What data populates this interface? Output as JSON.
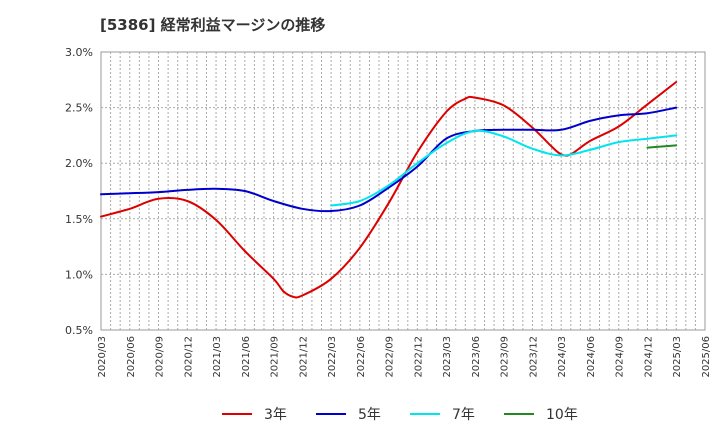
{
  "chart_data": {
    "type": "line",
    "title": "[5386]  経常利益マージンの推移",
    "xlabel": "",
    "ylabel": "",
    "ylim": [
      0.005,
      0.03
    ],
    "y_ticks": [
      "0.5%",
      "1.0%",
      "1.5%",
      "2.0%",
      "2.5%",
      "3.0%"
    ],
    "y_tick_values": [
      0.005,
      0.01,
      0.015,
      0.02,
      0.025,
      0.03
    ],
    "x_ticks": [
      "2020/03",
      "2020/06",
      "2020/09",
      "2020/12",
      "2021/03",
      "2021/06",
      "2021/09",
      "2021/12",
      "2022/03",
      "2022/06",
      "2022/09",
      "2022/12",
      "2023/03",
      "2023/06",
      "2023/09",
      "2023/12",
      "2024/03",
      "2024/06",
      "2024/09",
      "2024/12",
      "2025/03",
      "2025/06"
    ],
    "grid": true,
    "legend_position": "bottom",
    "series": [
      {
        "name": "3年",
        "color": "#dd0000",
        "x": [
          "2020/03",
          "2020/06",
          "2020/09",
          "2020/12",
          "2021/03",
          "2021/06",
          "2021/09",
          "2021/10",
          "2021/11",
          "2021/12",
          "2022/03",
          "2022/06",
          "2022/09",
          "2022/12",
          "2023/03",
          "2023/05",
          "2023/06",
          "2023/09",
          "2023/12",
          "2024/02",
          "2024/03",
          "2024/04",
          "2024/06",
          "2024/09",
          "2024/12",
          "2025/03"
        ],
        "values": [
          0.0152,
          0.0159,
          0.0168,
          0.0166,
          0.0149,
          0.0121,
          0.0096,
          0.0085,
          0.008,
          0.0081,
          0.0096,
          0.0124,
          0.0164,
          0.021,
          0.0246,
          0.0258,
          0.0259,
          0.0252,
          0.0232,
          0.0215,
          0.0208,
          0.0208,
          0.022,
          0.0233,
          0.0253,
          0.0273
        ]
      },
      {
        "name": "5年",
        "color": "#0000cc",
        "x": [
          "2020/03",
          "2020/06",
          "2020/09",
          "2020/12",
          "2021/03",
          "2021/06",
          "2021/09",
          "2021/12",
          "2022/03",
          "2022/06",
          "2022/09",
          "2022/12",
          "2023/03",
          "2023/06",
          "2023/09",
          "2023/12",
          "2024/03",
          "2024/06",
          "2024/09",
          "2024/12",
          "2025/03"
        ],
        "values": [
          0.0172,
          0.0173,
          0.0174,
          0.0176,
          0.0177,
          0.0175,
          0.0166,
          0.0159,
          0.0157,
          0.0162,
          0.0178,
          0.0197,
          0.0222,
          0.0229,
          0.023,
          0.023,
          0.023,
          0.0238,
          0.0243,
          0.0245,
          0.025
        ]
      },
      {
        "name": "7年",
        "color": "#00e5ee",
        "x": [
          "2022/03",
          "2022/06",
          "2022/09",
          "2022/12",
          "2023/03",
          "2023/06",
          "2023/09",
          "2023/12",
          "2024/03",
          "2024/06",
          "2024/09",
          "2024/12",
          "2025/03"
        ],
        "values": [
          0.0162,
          0.0166,
          0.018,
          0.02,
          0.0218,
          0.0229,
          0.0224,
          0.0213,
          0.0207,
          0.0212,
          0.0219,
          0.0222,
          0.0225
        ]
      },
      {
        "name": "10年",
        "color": "#228822",
        "x": [
          "2024/12",
          "2025/03"
        ],
        "values": [
          0.0214,
          0.0216
        ]
      }
    ]
  }
}
